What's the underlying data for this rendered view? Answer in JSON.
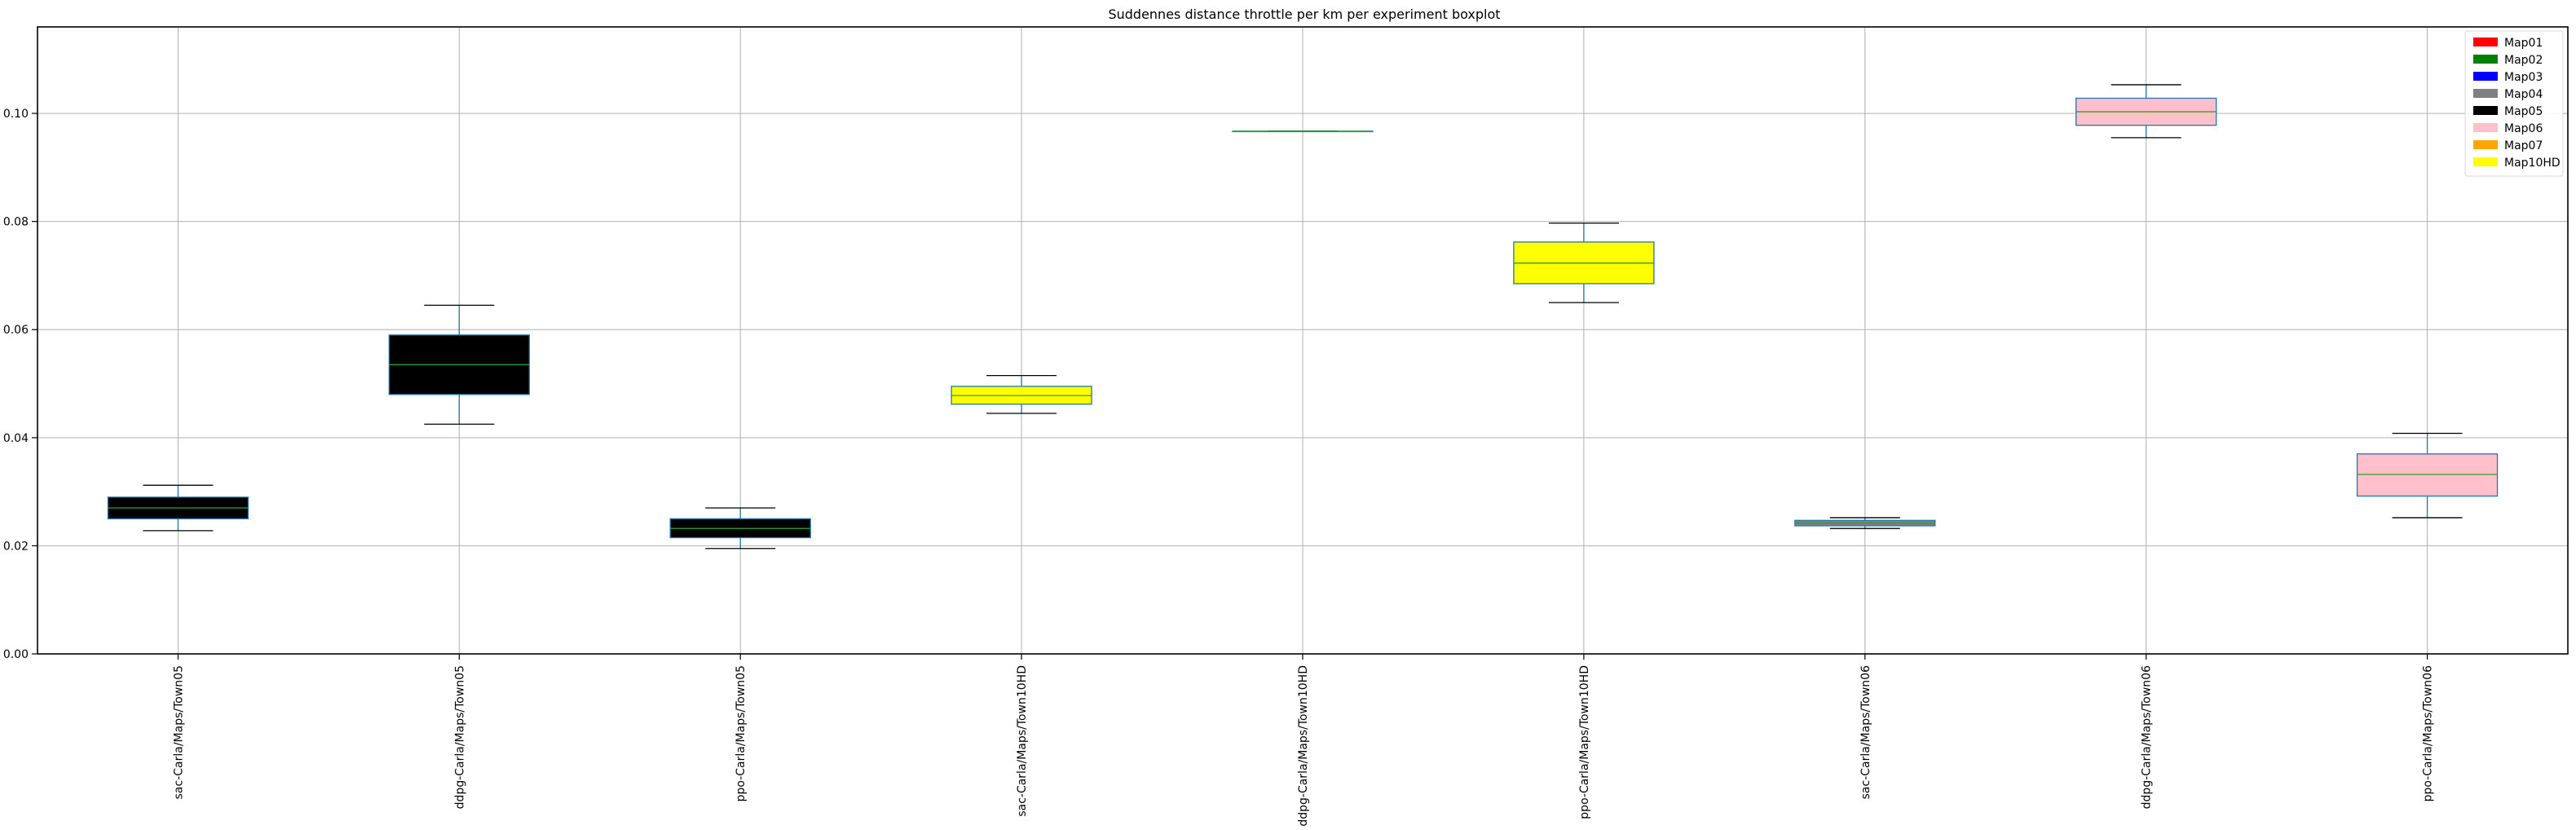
{
  "chart_data": {
    "type": "boxplot",
    "title": "Suddennes distance throttle per km per experiment boxplot",
    "xlabel": "",
    "ylabel": "",
    "ylim": [
      0.0,
      0.116
    ],
    "yticks": [
      0.0,
      0.02,
      0.04,
      0.06,
      0.08,
      0.1
    ],
    "ytick_labels": [
      "0.00",
      "0.02",
      "0.04",
      "0.06",
      "0.08",
      "0.10"
    ],
    "grid": true,
    "legend_position": "top-right",
    "legend": [
      {
        "label": "Map01",
        "color": "#ff0000"
      },
      {
        "label": "Map02",
        "color": "#008000"
      },
      {
        "label": "Map03",
        "color": "#0000ff"
      },
      {
        "label": "Map04",
        "color": "#808080"
      },
      {
        "label": "Map05",
        "color": "#000000"
      },
      {
        "label": "Map06",
        "color": "#ffc0cb"
      },
      {
        "label": "Map07",
        "color": "#ffa500"
      },
      {
        "label": "Map10HD",
        "color": "#ffff00"
      }
    ],
    "categories": [
      "sac-Carla/Maps/Town05",
      "ddpg-Carla/Maps/Town05",
      "ppo-Carla/Maps/Town05",
      "sac-Carla/Maps/Town10HD",
      "ddpg-Carla/Maps/Town10HD",
      "ppo-Carla/Maps/Town10HD",
      "sac-Carla/Maps/Town06",
      "ddpg-Carla/Maps/Town06",
      "ppo-Carla/Maps/Town06"
    ],
    "boxes": [
      {
        "whisker_low": 0.0228,
        "q1": 0.025,
        "median": 0.027,
        "q3": 0.029,
        "whisker_high": 0.0312,
        "fill": "#000000"
      },
      {
        "whisker_low": 0.0425,
        "q1": 0.048,
        "median": 0.0535,
        "q3": 0.059,
        "whisker_high": 0.0645,
        "fill": "#000000"
      },
      {
        "whisker_low": 0.0195,
        "q1": 0.0215,
        "median": 0.0232,
        "q3": 0.025,
        "whisker_high": 0.027,
        "fill": "#000000"
      },
      {
        "whisker_low": 0.0445,
        "q1": 0.0462,
        "median": 0.0478,
        "q3": 0.0495,
        "whisker_high": 0.0515,
        "fill": "#ffff00"
      },
      {
        "whisker_low": 0.0967,
        "q1": 0.0967,
        "median": 0.0967,
        "q3": 0.0967,
        "whisker_high": 0.0967,
        "fill": "#ffff00"
      },
      {
        "whisker_low": 0.065,
        "q1": 0.0685,
        "median": 0.0723,
        "q3": 0.0762,
        "whisker_high": 0.0797,
        "fill": "#ffff00"
      },
      {
        "whisker_low": 0.0232,
        "q1": 0.0237,
        "median": 0.0242,
        "q3": 0.0247,
        "whisker_high": 0.0252,
        "fill": "#808080"
      },
      {
        "whisker_low": 0.0955,
        "q1": 0.0978,
        "median": 0.1003,
        "q3": 0.1028,
        "whisker_high": 0.1053,
        "fill": "#ffc0cb"
      },
      {
        "whisker_low": 0.0252,
        "q1": 0.0292,
        "median": 0.0332,
        "q3": 0.037,
        "whisker_high": 0.0408,
        "fill": "#ffc0cb"
      }
    ]
  }
}
